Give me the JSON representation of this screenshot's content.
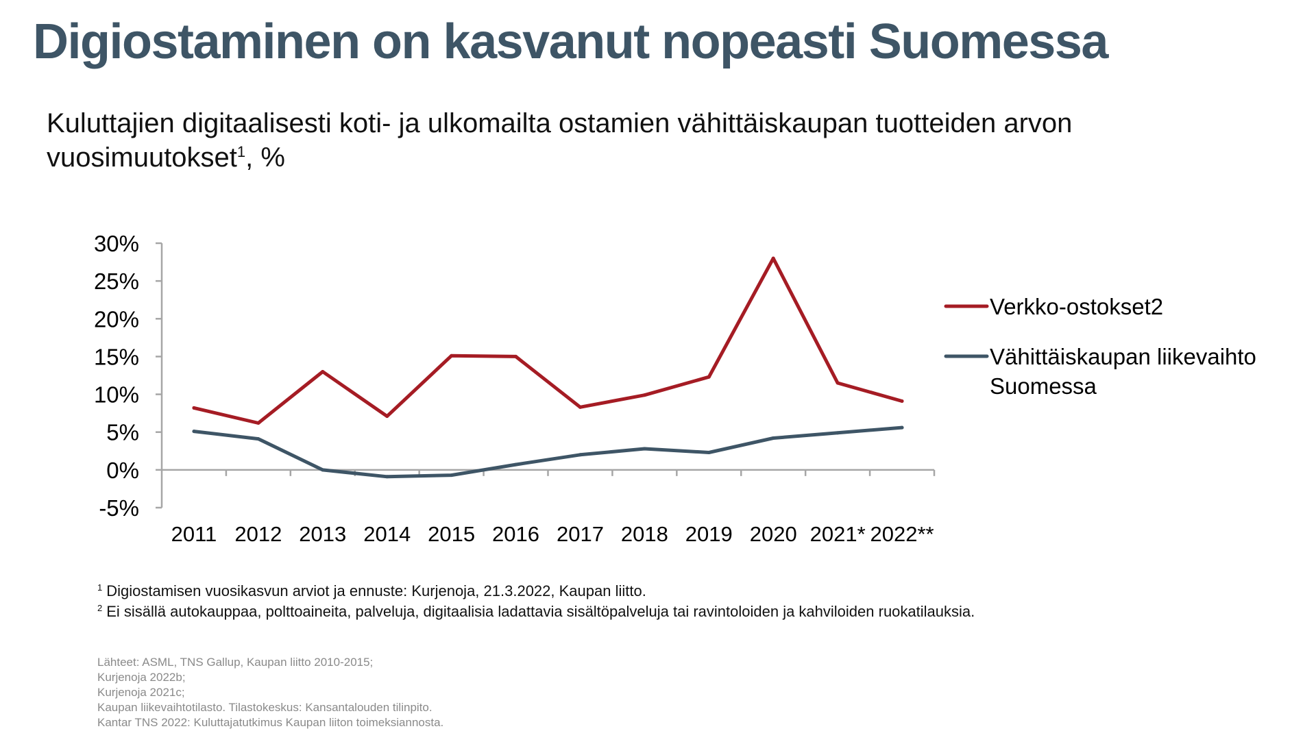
{
  "page": {
    "title": "Digiostaminen on kasvanut nopeasti Suomessa",
    "subtitle_text": "Kuluttajien digitaalisesti koti- ja ulkomailta ostamien vähittäiskaupan tuotteiden arvon vuosimuutokset",
    "subtitle_sup": "1",
    "subtitle_suffix": ", %"
  },
  "footnotes": [
    {
      "marker": "1",
      "text": "Digiostamisen vuosikasvun arviot ja ennuste: Kurjenoja, 21.3.2022, Kaupan liitto."
    },
    {
      "marker": "2",
      "text": "Ei sisällä autokauppaa, polttoaineita, palveluja, digitaalisia ladattavia sisältöpalveluja tai ravintoloiden ja kahviloiden ruokatilauksia."
    }
  ],
  "sources": [
    "Lähteet: ASML, TNS Gallup, Kaupan liitto 2010-2015;",
    "Kurjenoja 2022b;",
    "Kurjenoja 2021c;",
    "Kaupan liikevaihtotilasto. Tilastokeskus: Kansantalouden tilinpito.",
    "Kantar TNS 2022: Kuluttajatutkimus Kaupan liiton toimeksiannosta."
  ],
  "chart_data": {
    "type": "line",
    "categories": [
      "2011",
      "2012",
      "2013",
      "2014",
      "2015",
      "2016",
      "2017",
      "2018",
      "2019",
      "2020",
      "2021*",
      "2022**"
    ],
    "series": [
      {
        "name": "Verkko-ostokset2",
        "color": "#a51c24",
        "values": [
          8.2,
          6.2,
          13.0,
          7.1,
          15.1,
          15.0,
          8.3,
          9.9,
          12.3,
          28.0,
          11.5,
          9.1
        ]
      },
      {
        "name": "Vähittäiskaupan liikevaihto Suomessa",
        "color": "#3e5566",
        "values": [
          5.1,
          4.1,
          0.0,
          -0.9,
          -0.7,
          0.7,
          2.0,
          2.8,
          2.3,
          4.2,
          4.9,
          5.6
        ]
      }
    ],
    "ylim": [
      -5,
      30
    ],
    "yticks": [
      "-5%",
      "0%",
      "5%",
      "10%",
      "15%",
      "20%",
      "25%",
      "30%"
    ],
    "ytick_values": [
      -5,
      0,
      5,
      10,
      15,
      20,
      25,
      30
    ],
    "legend_position": "right",
    "grid": false
  }
}
